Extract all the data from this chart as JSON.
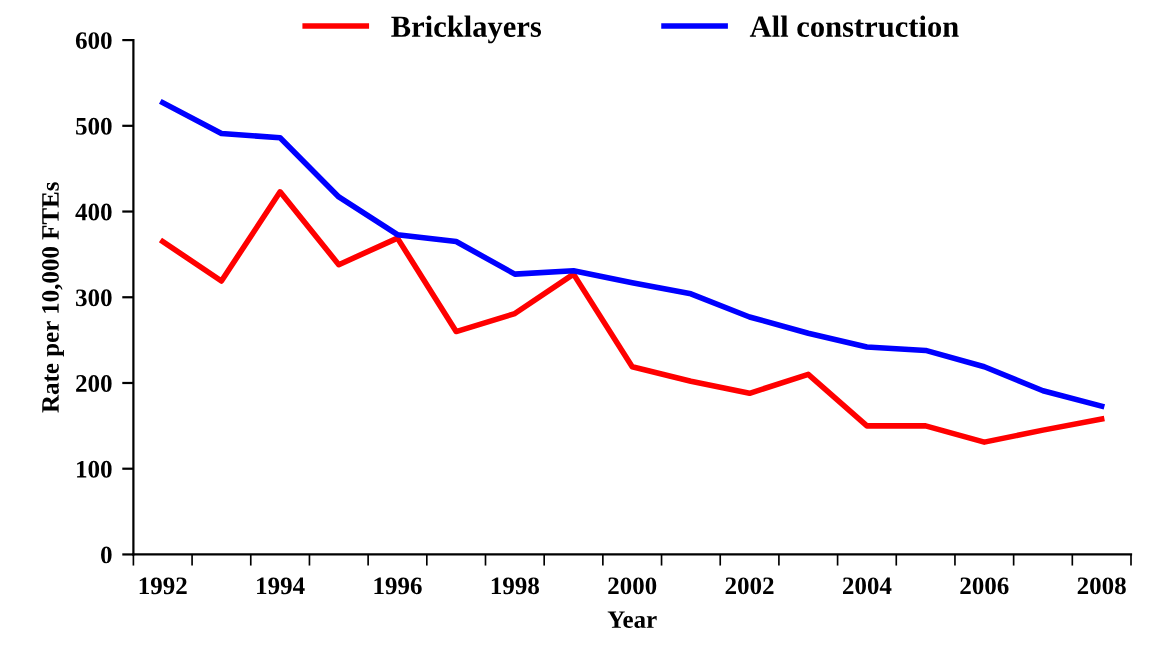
{
  "chart_data": {
    "type": "line",
    "xlabel": "Year",
    "ylabel": "Rate per 10,000 FTEs",
    "categories": [
      "1992",
      null,
      "1994",
      null,
      "1996",
      null,
      "1998",
      null,
      "2000",
      null,
      "2002",
      null,
      "2004",
      null,
      "2006",
      null,
      "2008"
    ],
    "series": [
      {
        "name": "Bricklayers",
        "color": "#ff0000",
        "values": [
          365,
          319,
          423,
          338,
          369,
          260,
          281,
          327,
          219,
          202,
          188,
          210,
          150,
          150,
          131,
          145,
          158
        ]
      },
      {
        "name": "All construction",
        "color": "#0000ff",
        "values": [
          527,
          491,
          486,
          417,
          373,
          365,
          327,
          331,
          317,
          304,
          277,
          258,
          242,
          238,
          219,
          191,
          173
        ]
      }
    ],
    "ylim": [
      0,
      600
    ],
    "yticks": [
      0,
      100,
      200,
      300,
      400,
      500,
      600
    ],
    "grid": false,
    "legend": "top",
    "marker": "none",
    "line_style": "solid"
  }
}
